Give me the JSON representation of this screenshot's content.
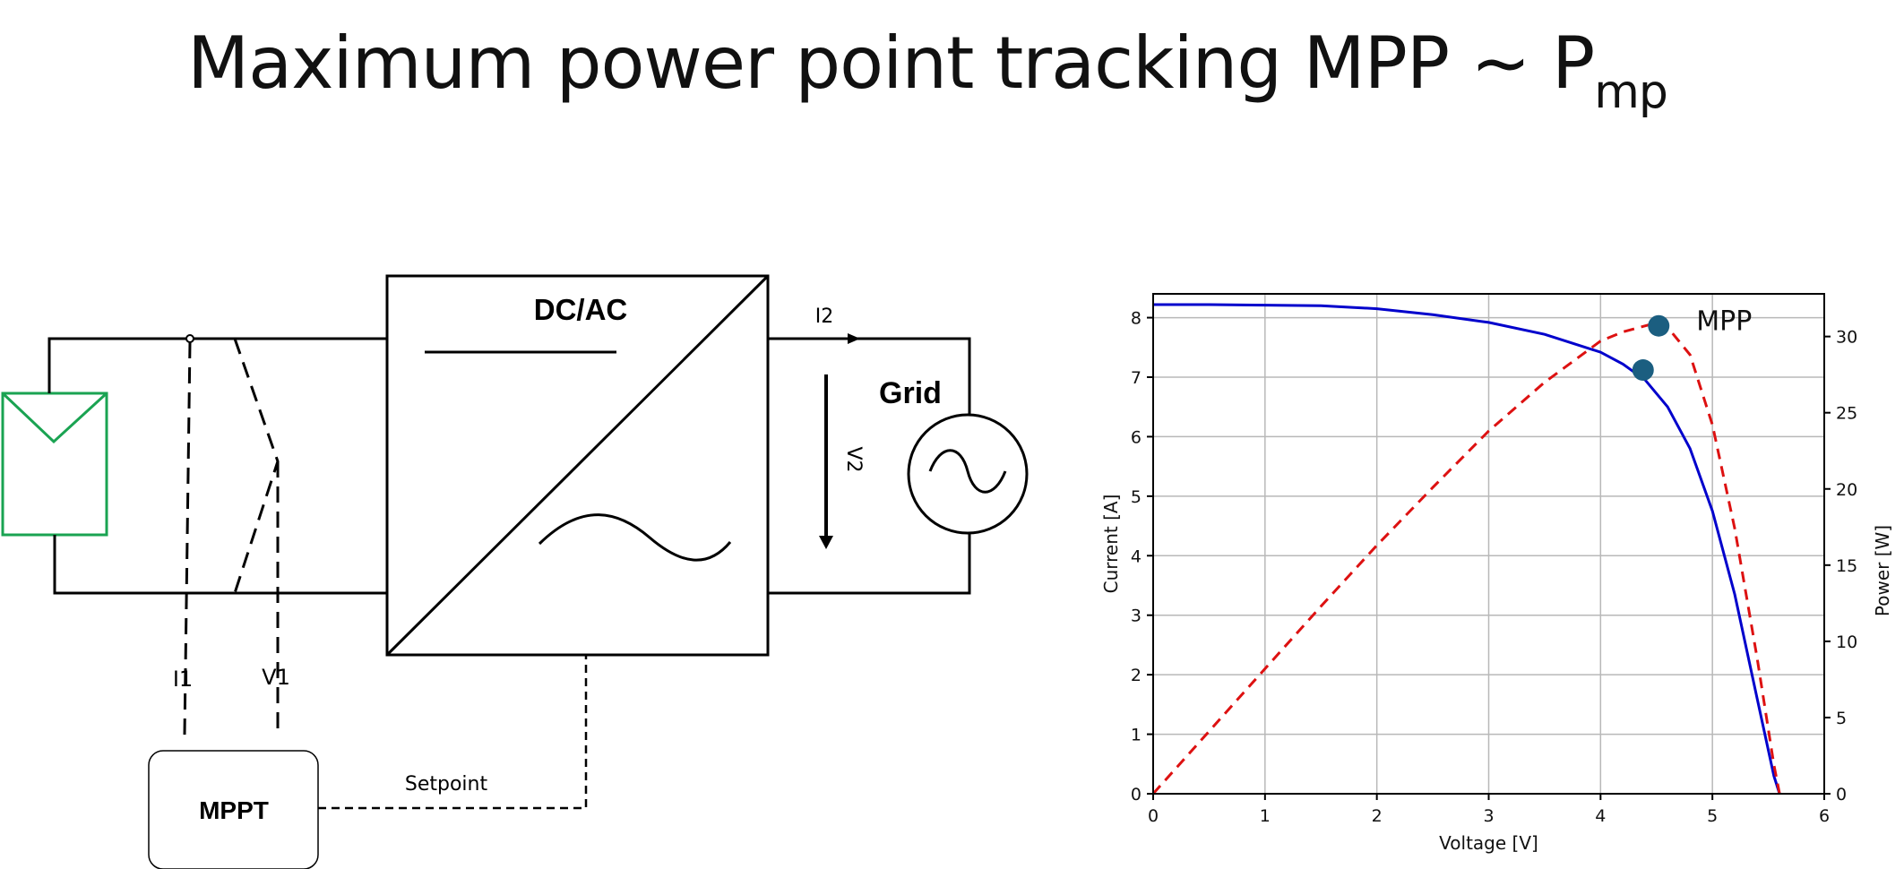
{
  "title": {
    "main": "Maximum power point tracking MPP ~ P",
    "subscript": "mp"
  },
  "diagram": {
    "converter_label": "DC/AC",
    "grid_label": "Grid",
    "controller_label": "MPPT",
    "current_in_label": "I1",
    "voltage_in_label": "V1",
    "current_out_label": "I2",
    "voltage_out_label": "V2",
    "setpoint_label": "Setpoint",
    "pv_color": "#1aa352"
  },
  "chart_data": {
    "type": "line",
    "xlabel": "Voltage [V]",
    "ylabel": "Current [A]",
    "y2label": "Power [W]",
    "xlim": [
      0,
      6
    ],
    "ylim": [
      0,
      8.4
    ],
    "y2lim": [
      0,
      32.8
    ],
    "xticks": [
      0,
      1,
      2,
      3,
      4,
      5,
      6
    ],
    "yticks": [
      0,
      1,
      2,
      3,
      4,
      5,
      6,
      7,
      8
    ],
    "y2ticks": [
      0,
      5,
      10,
      15,
      20,
      25,
      30
    ],
    "grid": true,
    "series": [
      {
        "axis": "left",
        "color": "#0000cc",
        "style": "solid",
        "x": [
          0,
          0.5,
          1.0,
          1.5,
          2.0,
          2.5,
          3.0,
          3.5,
          4.0,
          4.2,
          4.4,
          4.6,
          4.8,
          5.0,
          5.2,
          5.4,
          5.55,
          5.6
        ],
        "y": [
          8.22,
          8.22,
          8.21,
          8.2,
          8.15,
          8.05,
          7.92,
          7.72,
          7.42,
          7.22,
          6.95,
          6.5,
          5.8,
          4.75,
          3.35,
          1.6,
          0.3,
          0.0
        ]
      },
      {
        "axis": "right",
        "color": "#dd1111",
        "style": "dashed",
        "x": [
          0,
          0.5,
          1.0,
          1.5,
          2.0,
          2.5,
          3.0,
          3.5,
          4.0,
          4.2,
          4.4,
          4.5,
          4.6,
          4.8,
          5.0,
          5.2,
          5.4,
          5.55,
          5.6
        ],
        "y": [
          0,
          4.1,
          8.2,
          12.3,
          16.3,
          20.1,
          23.8,
          27.0,
          29.7,
          30.3,
          30.7,
          30.9,
          30.6,
          28.8,
          24.2,
          17.4,
          8.9,
          1.9,
          0
        ]
      }
    ],
    "markers": [
      {
        "axis": "left",
        "x": 4.38,
        "y": 7.12,
        "label": ""
      },
      {
        "axis": "right",
        "x": 4.52,
        "y": 30.7,
        "label": "MPP"
      }
    ],
    "marker_color": "#1b5e80"
  }
}
